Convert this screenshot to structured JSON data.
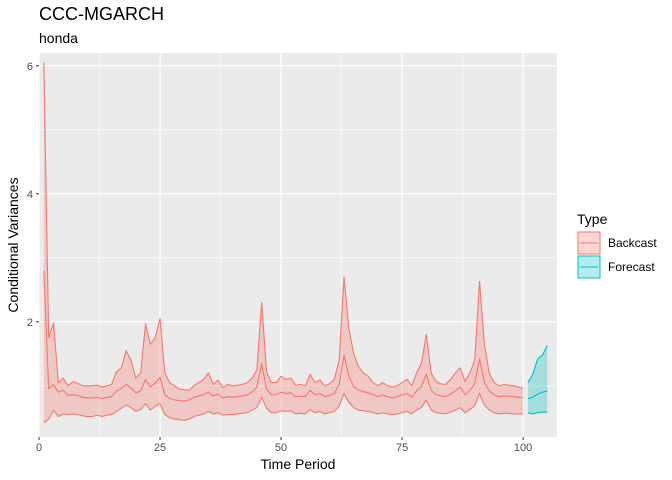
{
  "chart_data": {
    "type": "area",
    "title": "CCC-MGARCH",
    "subtitle": "honda",
    "xlabel": "Time Period",
    "ylabel": "Conditional Variances",
    "xlim": [
      0,
      107
    ],
    "ylim": [
      0.2,
      6.2
    ],
    "xticks": [
      0,
      25,
      50,
      75,
      100
    ],
    "yticks": [
      2,
      4,
      6
    ],
    "grid": true,
    "legend": {
      "title": "Type",
      "placement": "right"
    },
    "series": [
      {
        "name": "Backcast",
        "color": "#F8766D",
        "fill": "#F8766D",
        "x": [
          1,
          2,
          3,
          4,
          5,
          6,
          7,
          8,
          9,
          10,
          11,
          12,
          13,
          14,
          15,
          16,
          17,
          18,
          19,
          20,
          21,
          22,
          23,
          24,
          25,
          26,
          27,
          28,
          29,
          30,
          31,
          32,
          33,
          34,
          35,
          36,
          37,
          38,
          39,
          40,
          41,
          42,
          43,
          44,
          45,
          46,
          47,
          48,
          49,
          50,
          51,
          52,
          53,
          54,
          55,
          56,
          57,
          58,
          59,
          60,
          61,
          62,
          63,
          64,
          65,
          66,
          67,
          68,
          69,
          70,
          71,
          72,
          73,
          74,
          75,
          76,
          77,
          78,
          79,
          80,
          81,
          82,
          83,
          84,
          85,
          86,
          87,
          88,
          89,
          90,
          91,
          92,
          93,
          94,
          95,
          96,
          97,
          98,
          99,
          100
        ],
        "upper": [
          6.05,
          1.75,
          1.98,
          1.05,
          1.12,
          1.0,
          1.06,
          1.04,
          1.0,
          1.0,
          1.0,
          1.01,
          0.98,
          1.0,
          1.02,
          1.22,
          1.28,
          1.55,
          1.4,
          1.12,
          1.2,
          1.97,
          1.65,
          1.75,
          2.05,
          1.2,
          1.05,
          1.0,
          0.95,
          0.94,
          0.93,
          1.0,
          1.05,
          1.1,
          1.2,
          1.02,
          1.09,
          0.97,
          1.02,
          1.0,
          1.01,
          1.02,
          1.05,
          1.12,
          1.25,
          2.3,
          1.22,
          1.05,
          1.05,
          1.15,
          1.1,
          1.12,
          1.01,
          1.02,
          1.0,
          1.18,
          1.05,
          1.09,
          1.0,
          1.03,
          1.1,
          1.4,
          2.7,
          1.9,
          1.5,
          1.3,
          1.2,
          1.15,
          1.05,
          1.0,
          1.05,
          1.0,
          0.98,
          1.0,
          1.05,
          1.1,
          1.0,
          1.2,
          1.35,
          1.8,
          1.2,
          1.07,
          1.03,
          1.02,
          1.1,
          1.2,
          1.28,
          1.07,
          1.2,
          1.4,
          2.63,
          1.65,
          1.2,
          1.05,
          1.0,
          1.02,
          1.01,
          1.0,
          0.98,
          0.96
        ],
        "middle": [
          2.8,
          0.95,
          1.02,
          0.9,
          0.93,
          0.85,
          0.86,
          0.85,
          0.82,
          0.81,
          0.81,
          0.82,
          0.8,
          0.82,
          0.83,
          0.92,
          0.96,
          1.02,
          0.97,
          0.89,
          0.92,
          1.1,
          0.98,
          1.04,
          1.13,
          0.86,
          0.8,
          0.78,
          0.77,
          0.76,
          0.78,
          0.82,
          0.84,
          0.86,
          0.9,
          0.84,
          0.87,
          0.81,
          0.83,
          0.82,
          0.83,
          0.84,
          0.86,
          0.9,
          0.98,
          1.35,
          0.95,
          0.86,
          0.86,
          0.9,
          0.88,
          0.89,
          0.83,
          0.84,
          0.83,
          0.93,
          0.86,
          0.88,
          0.83,
          0.85,
          0.88,
          1.02,
          1.48,
          1.15,
          0.99,
          0.93,
          0.91,
          0.89,
          0.86,
          0.83,
          0.86,
          0.83,
          0.81,
          0.83,
          0.86,
          0.88,
          0.82,
          0.92,
          0.99,
          1.18,
          0.93,
          0.86,
          0.84,
          0.83,
          0.87,
          0.92,
          0.98,
          0.86,
          0.93,
          1.03,
          1.42,
          1.05,
          0.92,
          0.86,
          0.83,
          0.84,
          0.84,
          0.83,
          0.82,
          0.82
        ],
        "lower": [
          0.42,
          0.48,
          0.62,
          0.52,
          0.56,
          0.55,
          0.56,
          0.55,
          0.53,
          0.52,
          0.52,
          0.54,
          0.52,
          0.54,
          0.55,
          0.6,
          0.65,
          0.7,
          0.66,
          0.6,
          0.63,
          0.72,
          0.62,
          0.68,
          0.72,
          0.55,
          0.5,
          0.48,
          0.47,
          0.46,
          0.48,
          0.52,
          0.54,
          0.56,
          0.6,
          0.56,
          0.58,
          0.54,
          0.55,
          0.55,
          0.56,
          0.57,
          0.58,
          0.62,
          0.66,
          0.82,
          0.65,
          0.58,
          0.58,
          0.61,
          0.6,
          0.61,
          0.56,
          0.57,
          0.56,
          0.63,
          0.58,
          0.6,
          0.56,
          0.58,
          0.6,
          0.68,
          0.88,
          0.74,
          0.66,
          0.62,
          0.61,
          0.6,
          0.58,
          0.56,
          0.58,
          0.56,
          0.55,
          0.56,
          0.58,
          0.6,
          0.56,
          0.62,
          0.66,
          0.78,
          0.62,
          0.58,
          0.57,
          0.56,
          0.59,
          0.62,
          0.66,
          0.58,
          0.63,
          0.69,
          0.88,
          0.7,
          0.62,
          0.58,
          0.56,
          0.57,
          0.57,
          0.56,
          0.56,
          0.56
        ]
      },
      {
        "name": "Forecast",
        "color": "#00BFC4",
        "fill": "#00BFC4",
        "x": [
          101,
          102,
          103,
          104,
          105
        ],
        "upper": [
          1.05,
          1.18,
          1.42,
          1.48,
          1.63
        ],
        "middle": [
          0.8,
          0.82,
          0.87,
          0.9,
          0.92
        ],
        "lower": [
          0.58,
          0.56,
          0.58,
          0.59,
          0.59
        ]
      }
    ]
  }
}
